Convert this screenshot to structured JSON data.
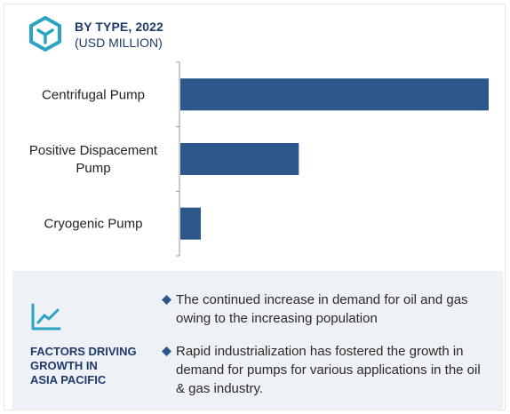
{
  "header": {
    "title": "BY TYPE, 2022",
    "subtitle": "(USD MILLION)",
    "icon": "cube-outline-icon"
  },
  "chart_data": {
    "type": "bar",
    "orientation": "horizontal",
    "categories": [
      "Centrifugal Pump",
      "Positive Dispacement Pump",
      "Cryogenic Pump"
    ],
    "category_lines": [
      [
        "Centrifugal Pump"
      ],
      [
        "Positive Dispacement",
        "Pump"
      ],
      [
        "Cryogenic Pump"
      ]
    ],
    "values": [
      100,
      38.6,
      6.9
    ],
    "xlim": [
      0,
      100
    ],
    "title": "",
    "xlabel": "",
    "ylabel": "",
    "bar_color": "#2c578a",
    "axis_color": "#999999",
    "grid": false
  },
  "factors": {
    "icon": "trend-up-icon",
    "title_lines": [
      "FACTORS DRIVING",
      "GROWTH IN",
      "ASIA PACIFIC"
    ],
    "bullet_color": "#2c578a",
    "items": [
      "The continued increase in demand for oil and gas owing to the increasing population",
      "Rapid industrialization has fostered the growth in demand for pumps for various applications in the oil & gas industry."
    ]
  }
}
